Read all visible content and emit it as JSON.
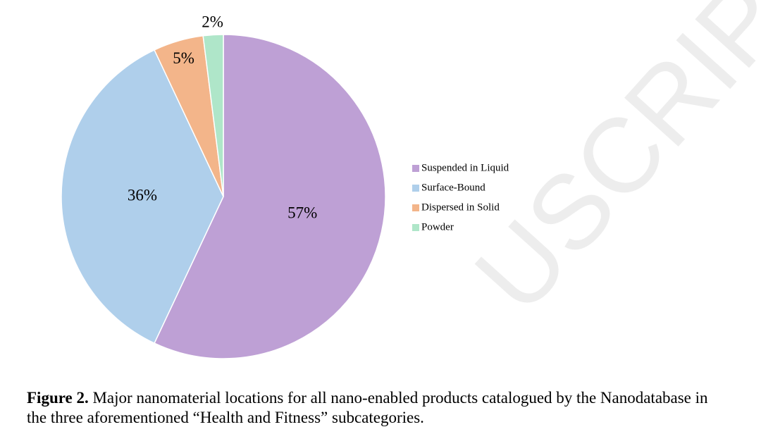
{
  "chart_data": {
    "type": "pie",
    "categories": [
      "Suspended in Liquid",
      "Surface-Bound",
      "Dispersed in Solid",
      "Powder"
    ],
    "values": [
      57,
      36,
      5,
      2
    ],
    "value_labels": [
      "57%",
      "36%",
      "5%",
      "2%"
    ],
    "colors": [
      "#bea0d5",
      "#afcfeb",
      "#f3b58a",
      "#afe6c9"
    ],
    "legend": "right"
  },
  "caption": {
    "label": "Figure 2.",
    "text": "Major nanomaterial locations for all nano-enabled products catalogued by the Nanodatabase in the three aforementioned “Health and Fitness” subcategories."
  },
  "watermark": "USCRIPT"
}
